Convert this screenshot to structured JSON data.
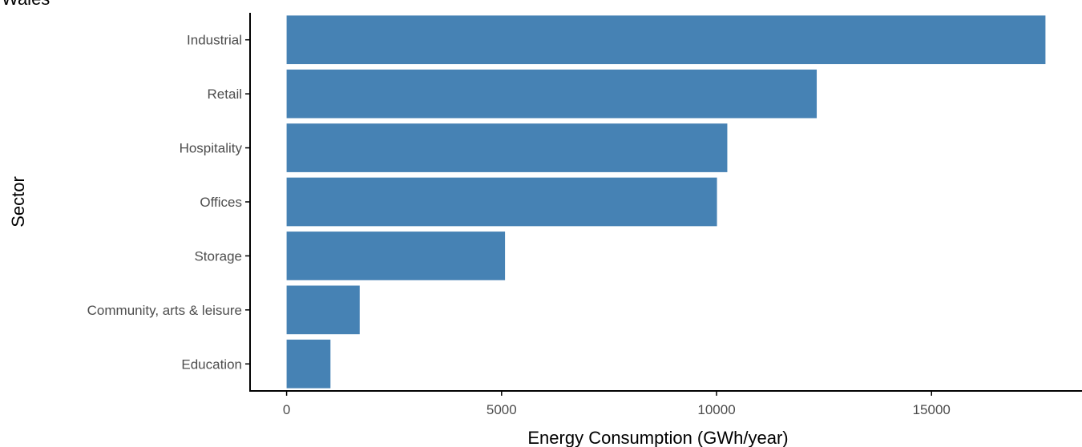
{
  "chart_data": {
    "type": "bar",
    "orientation": "horizontal",
    "title": "Wales",
    "xlabel": "Energy Consumption (GWh/year)",
    "ylabel": "Sector",
    "categories": [
      "Industrial",
      "Retail",
      "Hospitality",
      "Offices",
      "Storage",
      "Community, arts & leisure",
      "Education"
    ],
    "values": [
      17650,
      12330,
      10250,
      10010,
      5080,
      1700,
      1020
    ],
    "x_ticks": [
      0,
      5000,
      10000,
      15000
    ],
    "x_tick_labels": [
      "0",
      "5000",
      "10000",
      "15000"
    ],
    "xlim": [
      -850,
      18500
    ],
    "grid": false,
    "legend": "none",
    "bar_color": "#4682B4",
    "axis_color": "#000000",
    "tick_label_color": "#4d4d4d"
  }
}
